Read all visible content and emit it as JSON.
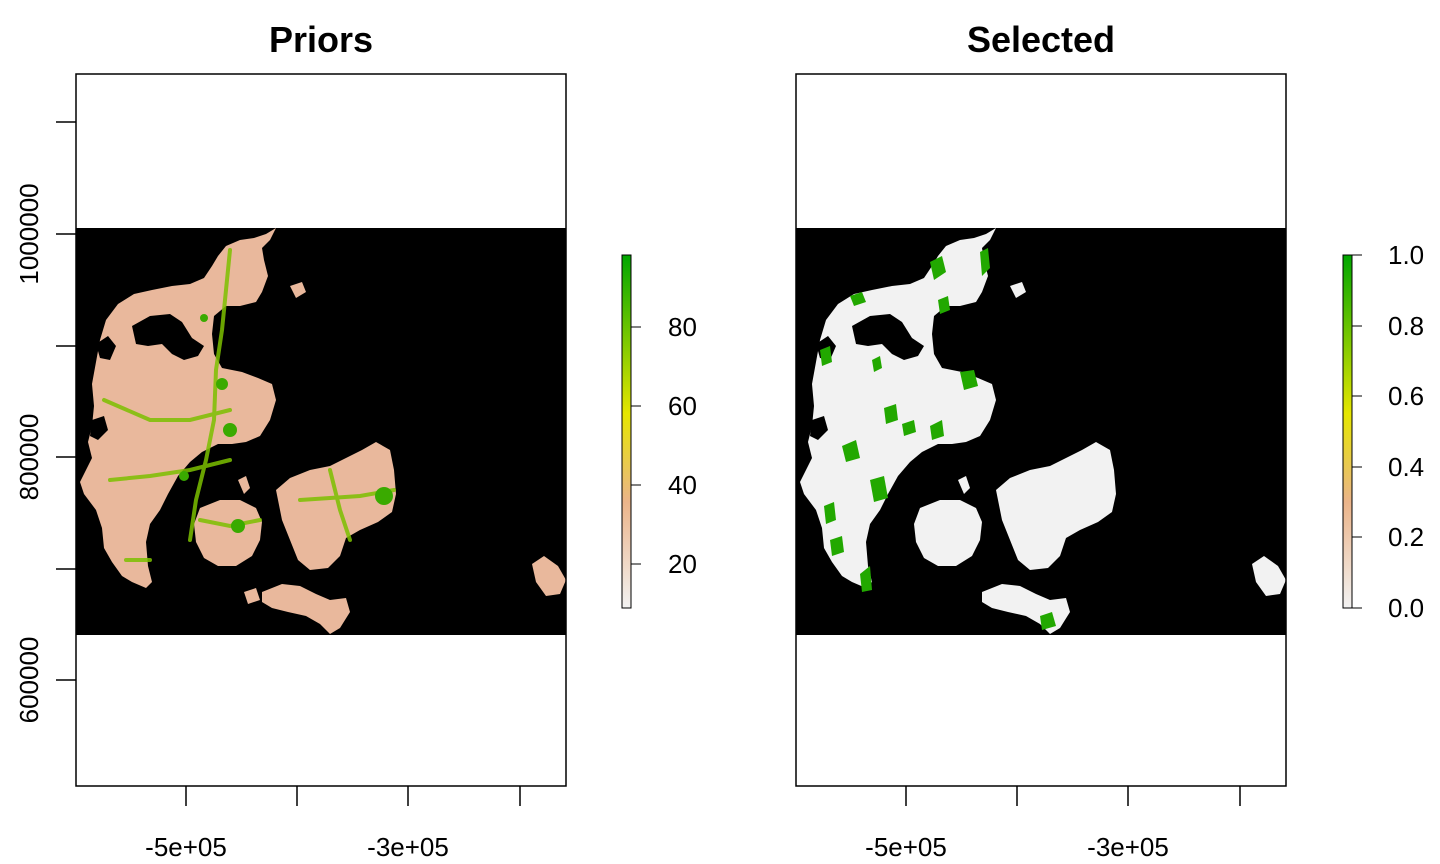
{
  "chart_data": [
    {
      "type": "heatmap",
      "title": "Priors",
      "xlabel": "",
      "ylabel": "",
      "xlim": [
        -600000,
        -160000
      ],
      "ylim": [
        500000,
        1140000
      ],
      "x_ticks": [
        -500000,
        -400000,
        -300000,
        -200000
      ],
      "x_tick_labels": [
        "-5e+05",
        "",
        "-3e+05",
        ""
      ],
      "y_ticks": [
        600000,
        700000,
        800000,
        900000,
        1000000,
        1100000
      ],
      "y_tick_labels": [
        "600000",
        "",
        "800000",
        "",
        "1000000",
        ""
      ],
      "raster_extent": {
        "ymin": 640000,
        "ymax": 1005000
      },
      "background": "#000000",
      "colors": [
        "#f2f2f2",
        "#ebb48a",
        "#e6e600",
        "#00a600"
      ],
      "legend": {
        "range": [
          10,
          98
        ],
        "ticks": [
          20,
          40,
          60,
          80
        ],
        "tick_labels": [
          "20",
          "40",
          "60",
          "80"
        ]
      }
    },
    {
      "type": "heatmap",
      "title": "Selected",
      "xlabel": "",
      "ylabel": "",
      "xlim": [
        -600000,
        -160000
      ],
      "ylim": [
        500000,
        1140000
      ],
      "x_ticks": [
        -500000,
        -400000,
        -300000,
        -200000
      ],
      "x_tick_labels": [
        "-5e+05",
        "",
        "-3e+05",
        ""
      ],
      "raster_extent": {
        "ymin": 640000,
        "ymax": 1005000
      },
      "background": "#000000",
      "colors": [
        "#f2f2f2",
        "#ebb48a",
        "#e6e600",
        "#00a600"
      ],
      "legend": {
        "range": [
          0,
          1
        ],
        "ticks": [
          0,
          0.2,
          0.4,
          0.6,
          0.8,
          1.0
        ],
        "tick_labels": [
          "0.0",
          "0.2",
          "0.4",
          "0.6",
          "0.8",
          "1.0"
        ]
      }
    }
  ]
}
